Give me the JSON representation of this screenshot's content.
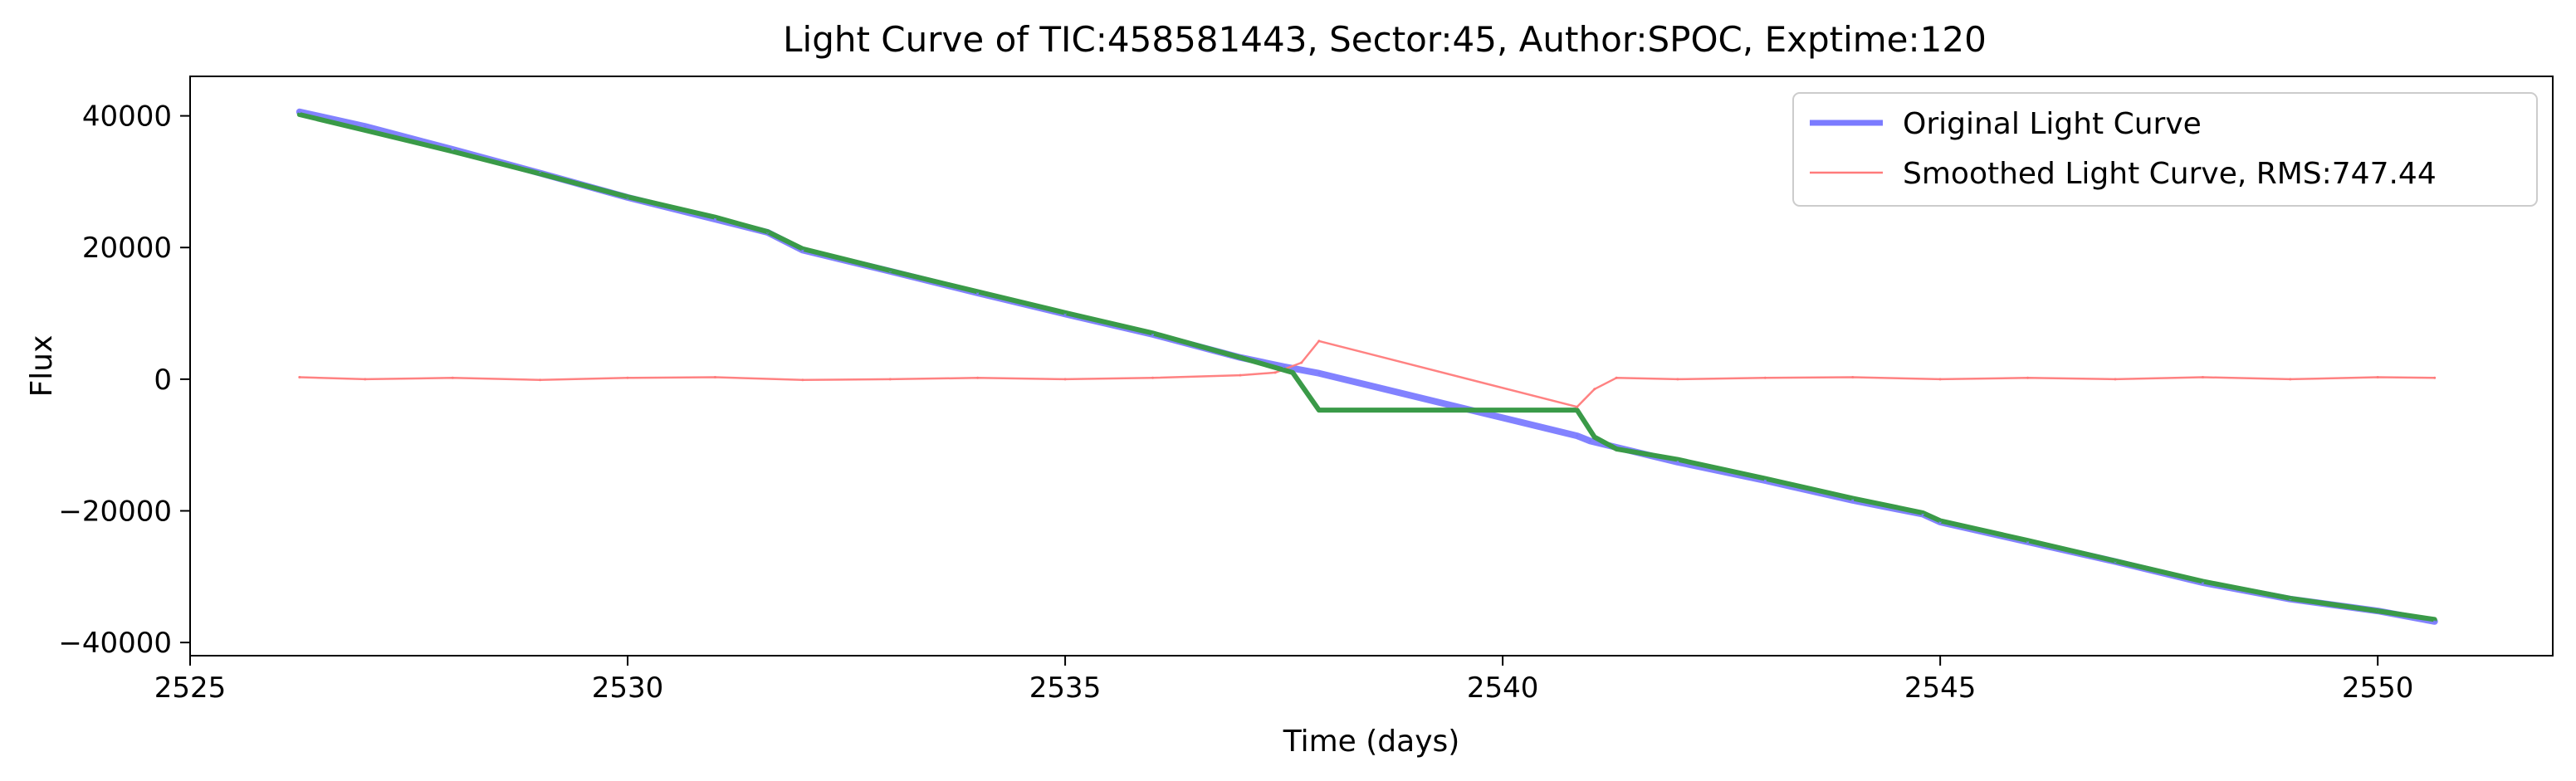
{
  "chart_data": {
    "type": "line",
    "title": "Light Curve of TIC:458581443, Sector:45, Author:SPOC, Exptime:120",
    "xlabel": "Time (days)",
    "ylabel": "Flux",
    "xlim": [
      2525,
      2552
    ],
    "ylim": [
      -42000,
      46000
    ],
    "xticks": [
      2525,
      2530,
      2535,
      2540,
      2545,
      2550
    ],
    "xtick_labels": [
      "2525",
      "2530",
      "2535",
      "2540",
      "2545",
      "2550"
    ],
    "yticks": [
      40000,
      20000,
      0,
      -20000,
      -40000
    ],
    "ytick_labels": [
      "40000",
      "20000",
      "0",
      "−20000",
      "−40000"
    ],
    "grid": false,
    "legend_position": "top-right",
    "colors": {
      "original": "#7b7bff",
      "smoothed": "#ff7b7b",
      "trend": "#3a9a48"
    },
    "legend": [
      {
        "label": "Original Light Curve",
        "series": "original"
      },
      {
        "label": "Smoothed Light Curve, RMS:747.44",
        "series": "smoothed"
      }
    ],
    "series": [
      {
        "name": "Original Light Curve",
        "key": "original",
        "x": [
          2526.25,
          2527.0,
          2528.0,
          2529.0,
          2530.0,
          2531.0,
          2531.6,
          2532.0,
          2533.0,
          2534.0,
          2535.0,
          2536.0,
          2537.0,
          2537.5,
          2537.9,
          2540.85,
          2541.0,
          2542.0,
          2543.0,
          2544.0,
          2544.8,
          2545.0,
          2546.0,
          2547.0,
          2548.0,
          2549.0,
          2550.0,
          2550.65
        ],
        "y": [
          40600,
          38400,
          34900,
          31300,
          27600,
          24300,
          22300,
          19600,
          16400,
          13100,
          9900,
          6800,
          3300,
          1900,
          900,
          -8600,
          -9400,
          -12600,
          -15400,
          -18400,
          -20500,
          -21700,
          -24700,
          -27700,
          -30900,
          -33400,
          -35200,
          -36800
        ]
      },
      {
        "name": "Smoothed Light Curve, RMS:747.44",
        "key": "smoothed",
        "x": [
          2526.25,
          2527.0,
          2528.0,
          2529.0,
          2530.0,
          2531.0,
          2532.0,
          2533.0,
          2534.0,
          2535.0,
          2536.0,
          2537.0,
          2537.4,
          2537.7,
          2537.9,
          2540.85,
          2541.05,
          2541.3,
          2542.0,
          2543.0,
          2544.0,
          2545.0,
          2546.0,
          2547.0,
          2548.0,
          2549.0,
          2550.0,
          2550.65
        ],
        "y": [
          300,
          0,
          200,
          -100,
          200,
          300,
          -100,
          0,
          200,
          0,
          200,
          600,
          1000,
          2500,
          5800,
          -4200,
          -1500,
          200,
          0,
          200,
          300,
          0,
          200,
          0,
          300,
          0,
          300,
          200
        ]
      },
      {
        "name": "",
        "key": "trend",
        "x": [
          2526.25,
          2527.0,
          2528.0,
          2529.0,
          2530.0,
          2531.0,
          2531.6,
          2532.0,
          2533.0,
          2534.0,
          2535.0,
          2536.0,
          2537.0,
          2537.6,
          2537.9,
          2540.85,
          2541.05,
          2541.3,
          2542.0,
          2543.0,
          2544.0,
          2544.8,
          2545.0,
          2546.0,
          2547.0,
          2548.0,
          2549.0,
          2550.0,
          2550.65
        ],
        "y": [
          40200,
          37800,
          34600,
          31200,
          27700,
          24600,
          22400,
          19800,
          16500,
          13300,
          10100,
          7000,
          3300,
          1000,
          -4700,
          -4700,
          -8800,
          -10600,
          -12200,
          -15100,
          -18100,
          -20300,
          -21500,
          -24500,
          -27600,
          -30700,
          -33300,
          -35200,
          -36500
        ]
      }
    ]
  }
}
